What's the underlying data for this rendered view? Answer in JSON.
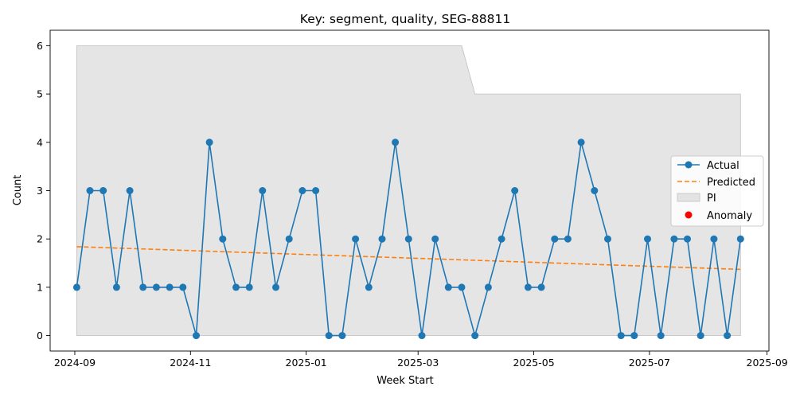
{
  "chart_data": {
    "type": "line",
    "title": "Key: segment, quality, SEG-88811",
    "xlabel": "Week Start",
    "ylabel": "Count",
    "x_range": [
      "2024-08-19",
      "2025-09-02"
    ],
    "ylim": [
      -0.32,
      6.32
    ],
    "x_ticks": [
      {
        "date": "2024-09-01",
        "label": "2024-09"
      },
      {
        "date": "2024-11-01",
        "label": "2024-11"
      },
      {
        "date": "2025-01-01",
        "label": "2025-01"
      },
      {
        "date": "2025-03-01",
        "label": "2025-03"
      },
      {
        "date": "2025-05-01",
        "label": "2025-05"
      },
      {
        "date": "2025-07-01",
        "label": "2025-07"
      },
      {
        "date": "2025-09-01",
        "label": "2025-09"
      }
    ],
    "y_ticks": [
      0,
      1,
      2,
      3,
      4,
      5,
      6
    ],
    "grid": false,
    "legend_position": "center-right",
    "legend": [
      {
        "label": "Actual",
        "kind": "line-marker",
        "color": "#1f77b4"
      },
      {
        "label": "Predicted",
        "kind": "dashed-line",
        "color": "#ff7f0e"
      },
      {
        "label": "PI",
        "kind": "patch",
        "color": "#d3d3d3"
      },
      {
        "label": "Anomaly",
        "kind": "point",
        "color": "#ff0000"
      }
    ],
    "series": [
      {
        "name": "Actual",
        "color": "#1f77b4",
        "x": [
          "2024-09-02",
          "2024-09-09",
          "2024-09-16",
          "2024-09-23",
          "2024-09-30",
          "2024-10-07",
          "2024-10-14",
          "2024-10-21",
          "2024-10-28",
          "2024-11-04",
          "2024-11-11",
          "2024-11-18",
          "2024-11-25",
          "2024-12-02",
          "2024-12-09",
          "2024-12-16",
          "2024-12-23",
          "2024-12-30",
          "2025-01-06",
          "2025-01-13",
          "2025-01-20",
          "2025-01-27",
          "2025-02-03",
          "2025-02-10",
          "2025-02-17",
          "2025-02-24",
          "2025-03-03",
          "2025-03-10",
          "2025-03-17",
          "2025-03-24",
          "2025-03-31",
          "2025-04-07",
          "2025-04-14",
          "2025-04-21",
          "2025-04-28",
          "2025-05-05",
          "2025-05-12",
          "2025-05-19",
          "2025-05-26",
          "2025-06-02",
          "2025-06-09",
          "2025-06-16",
          "2025-06-23",
          "2025-06-30",
          "2025-07-07",
          "2025-07-14",
          "2025-07-21",
          "2025-07-28",
          "2025-08-04",
          "2025-08-11",
          "2025-08-18"
        ],
        "values": [
          1,
          3,
          3,
          1,
          3,
          1,
          1,
          1,
          1,
          0,
          4,
          2,
          1,
          1,
          3,
          1,
          2,
          3,
          3,
          0,
          0,
          2,
          1,
          2,
          4,
          2,
          0,
          2,
          1,
          1,
          0,
          1,
          2,
          3,
          1,
          1,
          2,
          2,
          4,
          3,
          2,
          0,
          0,
          2,
          0,
          2,
          2,
          0,
          2,
          0,
          2
        ]
      },
      {
        "name": "Predicted",
        "color": "#ff7f0e",
        "x": [
          "2024-09-02",
          "2025-08-18"
        ],
        "values": [
          1.84,
          1.37
        ]
      }
    ],
    "interval": {
      "name": "PI",
      "color": "#d3d3d3",
      "x": [
        "2024-09-02",
        "2025-03-24",
        "2025-03-31",
        "2025-08-18"
      ],
      "lower": [
        0,
        0,
        0,
        0
      ],
      "upper": [
        6,
        6,
        5,
        5
      ]
    },
    "anomalies": []
  }
}
